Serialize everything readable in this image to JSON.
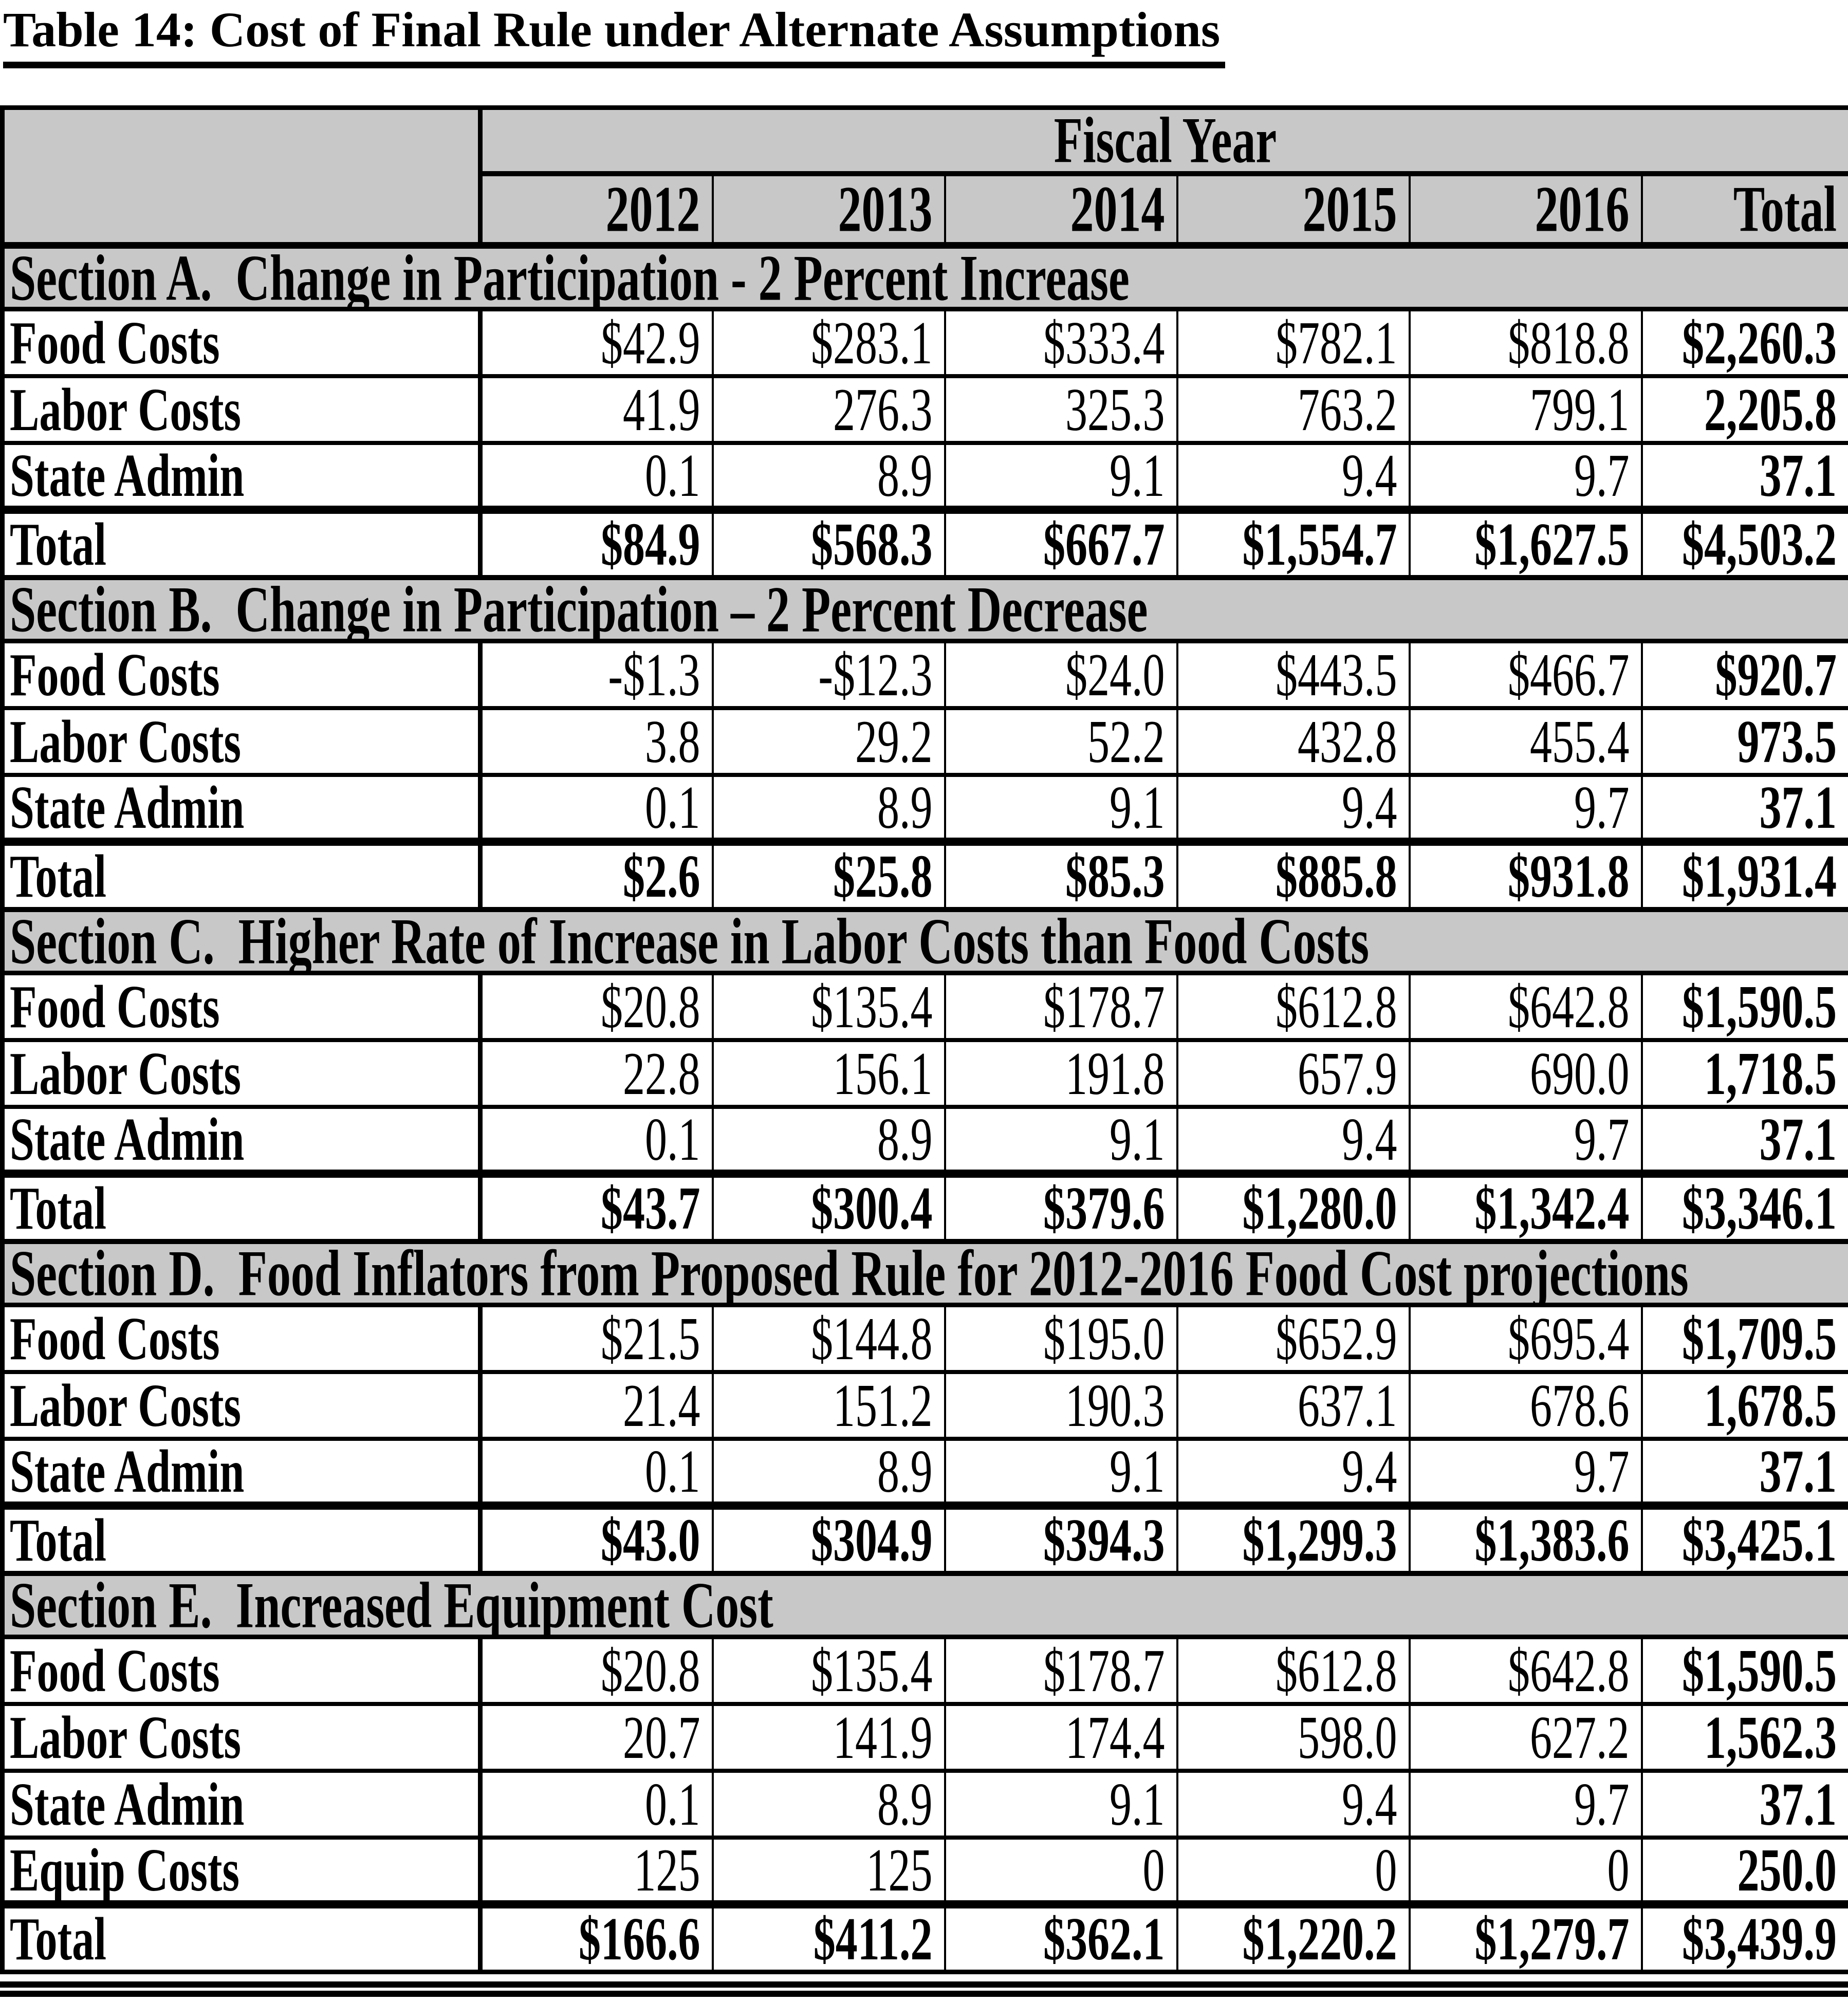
{
  "title": "Table 14: Cost of Final Rule under Alternate Assumptions",
  "colors": {
    "header_background": "#c8c8c8",
    "border": "#000000",
    "text": "#000000",
    "page_background": "#ffffff"
  },
  "table": {
    "header": {
      "fiscal_year_label": "Fiscal Year",
      "years": [
        "2012",
        "2013",
        "2014",
        "2015",
        "2016",
        "Total"
      ]
    },
    "sections": [
      {
        "title": "Section A.  Change in Participation - 2 Percent Increase",
        "rows": [
          {
            "label": "Food Costs",
            "values": [
              "$42.9",
              "$283.1",
              "$333.4",
              "$782.1",
              "$818.8",
              "$2,260.3"
            ],
            "is_total": false
          },
          {
            "label": "Labor Costs",
            "values": [
              "41.9",
              "276.3",
              "325.3",
              "763.2",
              "799.1",
              "2,205.8"
            ],
            "is_total": false
          },
          {
            "label": "State Admin",
            "values": [
              "0.1",
              "8.9",
              "9.1",
              "9.4",
              "9.7",
              "37.1"
            ],
            "is_total": false
          },
          {
            "label": "Total",
            "values": [
              "$84.9",
              "$568.3",
              "$667.7",
              "$1,554.7",
              "$1,627.5",
              "$4,503.2"
            ],
            "is_total": true
          }
        ]
      },
      {
        "title": "Section B.  Change in Participation – 2 Percent Decrease",
        "rows": [
          {
            "label": "Food Costs",
            "values": [
              "-$1.3",
              "-$12.3",
              "$24.0",
              "$443.5",
              "$466.7",
              "$920.7"
            ],
            "is_total": false
          },
          {
            "label": "Labor Costs",
            "values": [
              "3.8",
              "29.2",
              "52.2",
              "432.8",
              "455.4",
              "973.5"
            ],
            "is_total": false
          },
          {
            "label": "State Admin",
            "values": [
              "0.1",
              "8.9",
              "9.1",
              "9.4",
              "9.7",
              "37.1"
            ],
            "is_total": false
          },
          {
            "label": "Total",
            "values": [
              "$2.6",
              "$25.8",
              "$85.3",
              "$885.8",
              "$931.8",
              "$1,931.4"
            ],
            "is_total": true
          }
        ]
      },
      {
        "title": "Section C.  Higher Rate of Increase in Labor Costs than Food Costs",
        "rows": [
          {
            "label": "Food Costs",
            "values": [
              "$20.8",
              "$135.4",
              "$178.7",
              "$612.8",
              "$642.8",
              "$1,590.5"
            ],
            "is_total": false
          },
          {
            "label": "Labor Costs",
            "values": [
              "22.8",
              "156.1",
              "191.8",
              "657.9",
              "690.0",
              "1,718.5"
            ],
            "is_total": false
          },
          {
            "label": "State Admin",
            "values": [
              "0.1",
              "8.9",
              "9.1",
              "9.4",
              "9.7",
              "37.1"
            ],
            "is_total": false
          },
          {
            "label": "Total",
            "values": [
              "$43.7",
              "$300.4",
              "$379.6",
              "$1,280.0",
              "$1,342.4",
              "$3,346.1"
            ],
            "is_total": true
          }
        ]
      },
      {
        "title": "Section D.  Food Inflators from Proposed Rule for 2012-2016 Food Cost projections",
        "rows": [
          {
            "label": "Food Costs",
            "values": [
              "$21.5",
              "$144.8",
              "$195.0",
              "$652.9",
              "$695.4",
              "$1,709.5"
            ],
            "is_total": false
          },
          {
            "label": "Labor Costs",
            "values": [
              "21.4",
              "151.2",
              "190.3",
              "637.1",
              "678.6",
              "1,678.5"
            ],
            "is_total": false
          },
          {
            "label": "State Admin",
            "values": [
              "0.1",
              "8.9",
              "9.1",
              "9.4",
              "9.7",
              "37.1"
            ],
            "is_total": false
          },
          {
            "label": "Total",
            "values": [
              "$43.0",
              "$304.9",
              "$394.3",
              "$1,299.3",
              "$1,383.6",
              "$3,425.1"
            ],
            "is_total": true
          }
        ]
      },
      {
        "title": "Section E.  Increased Equipment Cost",
        "rows": [
          {
            "label": "Food Costs",
            "values": [
              "$20.8",
              "$135.4",
              "$178.7",
              "$612.8",
              "$642.8",
              "$1,590.5"
            ],
            "is_total": false
          },
          {
            "label": "Labor Costs",
            "values": [
              "20.7",
              "141.9",
              "174.4",
              "598.0",
              "627.2",
              "1,562.3"
            ],
            "is_total": false
          },
          {
            "label": "State Admin",
            "values": [
              "0.1",
              "8.9",
              "9.1",
              "9.4",
              "9.7",
              "37.1"
            ],
            "is_total": false
          },
          {
            "label": "Equip Costs",
            "values": [
              "125",
              "125",
              "0",
              "0",
              "0",
              "250.0"
            ],
            "is_total": false
          },
          {
            "label": "Total",
            "values": [
              "$166.6",
              "$411.2",
              "$362.1",
              "$1,220.2",
              "$1,279.7",
              "$3,439.9"
            ],
            "is_total": true
          }
        ]
      }
    ]
  }
}
